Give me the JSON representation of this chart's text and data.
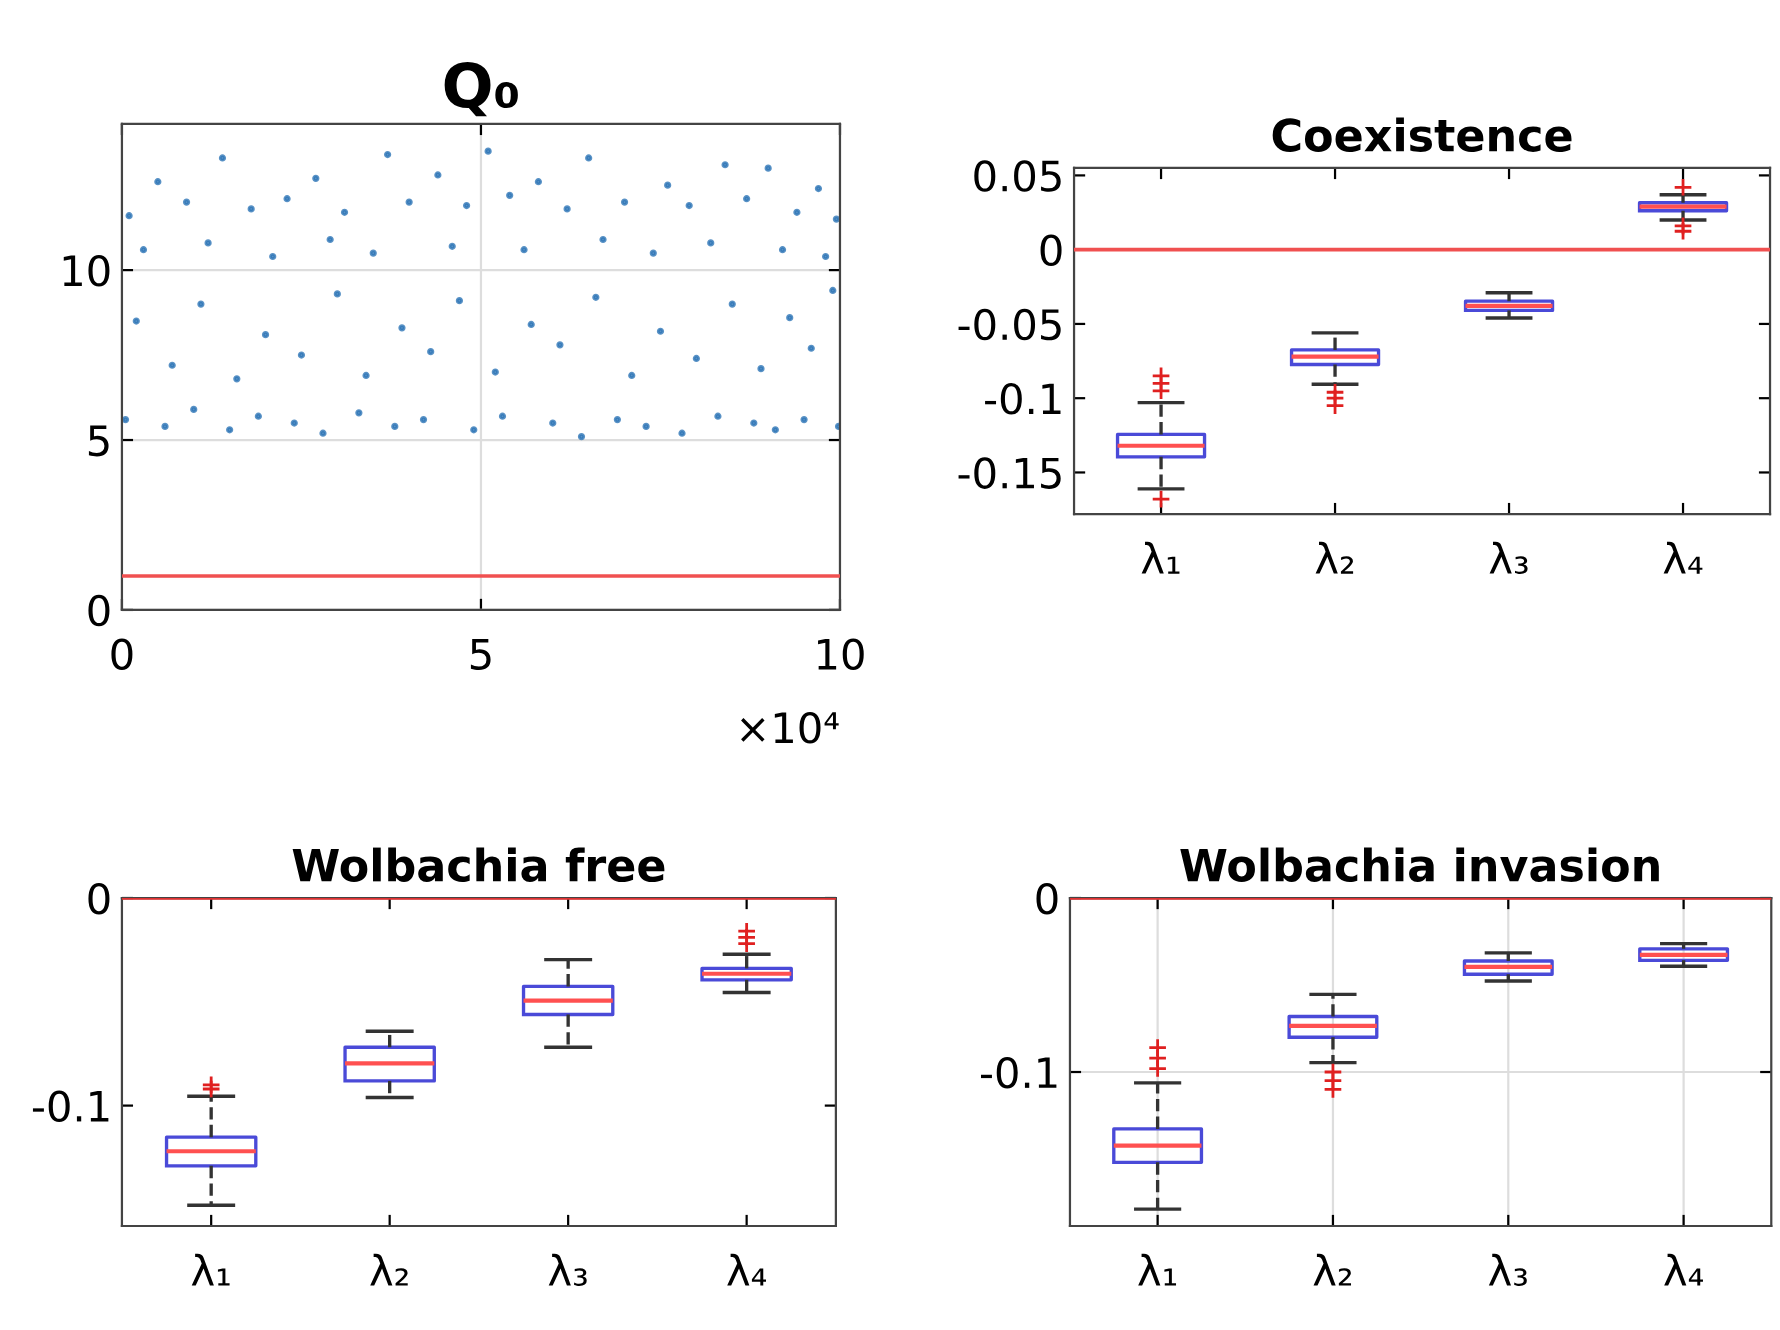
{
  "chart_data": [
    {
      "type": "scatter",
      "title": "Q₀",
      "xlim": [
        0,
        10
      ],
      "xticks": [
        0,
        5,
        10
      ],
      "ylim": [
        0,
        14.3
      ],
      "yticks": [
        0,
        5,
        10
      ],
      "grid": true,
      "marker": "circle",
      "annotations": [
        "×10⁴"
      ],
      "ref_lines": [
        {
          "axis": "y",
          "value": 1,
          "color": "#f05050"
        }
      ],
      "series": [
        {
          "color": "#2e75b6",
          "x": [
            1.4,
            3.7,
            5.1,
            6.5,
            8.4,
            9.0,
            0.5,
            2.7,
            4.4,
            5.8,
            7.6,
            9.7,
            0.1,
            0.9,
            1.8,
            2.3,
            3.1,
            4.0,
            4.8,
            5.4,
            6.2,
            7.0,
            7.9,
            8.7,
            9.4,
            9.95,
            0.3,
            1.2,
            2.1,
            2.9,
            3.5,
            4.6,
            5.6,
            6.7,
            7.4,
            8.2,
            9.2,
            9.8,
            0.2,
            0.7,
            1.1,
            1.6,
            2.0,
            2.5,
            3.0,
            3.4,
            3.9,
            4.3,
            4.7,
            5.2,
            5.7,
            6.1,
            6.6,
            7.1,
            7.5,
            8.0,
            8.5,
            8.9,
            9.3,
            9.6,
            9.9,
            0.05,
            0.6,
            1.0,
            1.5,
            1.9,
            2.4,
            2.8,
            3.3,
            3.8,
            4.2,
            4.9,
            5.3,
            6.0,
            6.4,
            6.9,
            7.3,
            7.8,
            8.3,
            8.8,
            9.1,
            9.5,
            9.98
          ],
          "values": [
            13.3,
            13.4,
            13.5,
            13.3,
            13.1,
            13.0,
            12.6,
            12.7,
            12.8,
            12.6,
            12.5,
            12.4,
            11.6,
            12.0,
            11.8,
            12.1,
            11.7,
            12.0,
            11.9,
            12.2,
            11.8,
            12.0,
            11.9,
            12.1,
            11.7,
            11.5,
            10.6,
            10.8,
            10.4,
            10.9,
            10.5,
            10.7,
            10.6,
            10.9,
            10.5,
            10.8,
            10.6,
            10.4,
            8.5,
            7.2,
            9.0,
            6.8,
            8.1,
            7.5,
            9.3,
            6.9,
            8.3,
            7.6,
            9.1,
            7.0,
            8.4,
            7.8,
            9.2,
            6.9,
            8.2,
            7.4,
            9.0,
            7.1,
            8.6,
            7.7,
            9.4,
            5.6,
            5.4,
            5.9,
            5.3,
            5.7,
            5.5,
            5.2,
            5.8,
            5.4,
            5.6,
            5.3,
            5.7,
            5.5,
            5.1,
            5.6,
            5.4,
            5.2,
            5.7,
            5.5,
            5.3,
            5.6,
            5.4
          ]
        }
      ]
    },
    {
      "type": "box",
      "title": "Coexistence",
      "categories": [
        "λ₁",
        "λ₂",
        "λ₃",
        "λ₄"
      ],
      "ylim": [
        -0.178,
        0.055
      ],
      "yticks": [
        -0.15,
        -0.1,
        -0.05,
        0,
        0.05
      ],
      "ref_lines": [
        {
          "axis": "y",
          "value": 0,
          "color": "#f05050"
        }
      ],
      "series": [
        {
          "color": "#4a4ad8",
          "boxes": [
            {
              "low": -0.161,
              "q1": -0.1395,
              "median": -0.132,
              "q3": -0.1244,
              "high": -0.103,
              "outliers": [
                -0.085,
                -0.09,
                -0.095,
                -0.168
              ]
            },
            {
              "low": -0.0906,
              "q1": -0.0773,
              "median": -0.072,
              "q3": -0.0675,
              "high": -0.056,
              "outliers": [
                -0.096,
                -0.1,
                -0.105
              ]
            },
            {
              "low": -0.046,
              "q1": -0.0409,
              "median": -0.0378,
              "q3": -0.0347,
              "high": -0.029
            },
            {
              "low": 0.02,
              "q1": 0.0262,
              "median": 0.029,
              "q3": 0.0316,
              "high": 0.037,
              "outliers": [
                0.042,
                0.016,
                0.0124
              ]
            }
          ]
        }
      ]
    },
    {
      "type": "box",
      "title": "Wolbachia free",
      "categories": [
        "λ₁",
        "λ₂",
        "λ₃",
        "λ₄"
      ],
      "ylim": [
        -0.158,
        0
      ],
      "yticks": [
        -0.1,
        0
      ],
      "ref_lines": [
        {
          "axis": "y",
          "value": 0,
          "color": "#e03030"
        }
      ],
      "series": [
        {
          "color": "#4a4ad8",
          "boxes": [
            {
              "low": -0.148,
              "q1": -0.129,
              "median": -0.122,
              "q3": -0.1152,
              "high": -0.0955,
              "outliers": [
                -0.09,
                -0.092
              ]
            },
            {
              "low": -0.0961,
              "q1": -0.0881,
              "median": -0.0797,
              "q3": -0.0719,
              "high": -0.0642
            },
            {
              "low": -0.0719,
              "q1": -0.0561,
              "median": -0.0494,
              "q3": -0.0426,
              "high": -0.0297
            },
            {
              "low": -0.0455,
              "q1": -0.0394,
              "median": -0.0365,
              "q3": -0.0339,
              "high": -0.0271,
              "outliers": [
                -0.016,
                -0.019,
                -0.022
              ]
            }
          ]
        }
      ]
    },
    {
      "type": "box",
      "title": "Wolbachia invasion",
      "categories": [
        "λ₁",
        "λ₂",
        "λ₃",
        "λ₄"
      ],
      "ylim": [
        -0.1885,
        0
      ],
      "yticks": [
        -0.1,
        0
      ],
      "grid": true,
      "ref_lines": [
        {
          "axis": "y",
          "value": 0,
          "color": "#e03030"
        }
      ],
      "series": [
        {
          "color": "#4a4ad8",
          "boxes": [
            {
              "low": -0.1788,
              "q1": -0.1519,
              "median": -0.1423,
              "q3": -0.1327,
              "high": -0.1062,
              "outliers": [
                -0.086,
                -0.092,
                -0.098
              ]
            },
            {
              "low": -0.0946,
              "q1": -0.08,
              "median": -0.0735,
              "q3": -0.0681,
              "high": -0.0554,
              "outliers": [
                -0.1,
                -0.105,
                -0.11
              ]
            },
            {
              "low": -0.0477,
              "q1": -0.0438,
              "median": -0.0396,
              "q3": -0.0362,
              "high": -0.0315
            },
            {
              "low": -0.0392,
              "q1": -0.0358,
              "median": -0.0327,
              "q3": -0.0292,
              "high": -0.0262
            }
          ]
        }
      ]
    }
  ]
}
